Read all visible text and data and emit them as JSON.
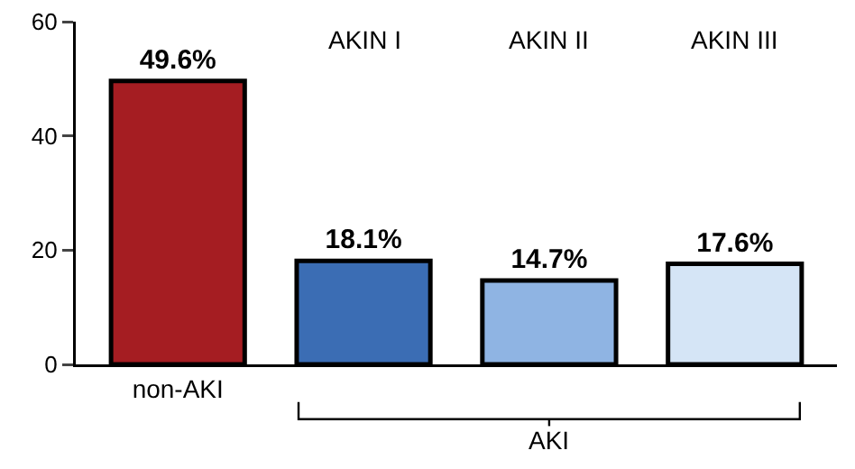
{
  "chart_data": {
    "type": "bar",
    "categories": [
      "non-AKI",
      "AKIN I",
      "AKIN II",
      "AKIN III"
    ],
    "values": [
      49.6,
      18.1,
      14.7,
      17.6
    ],
    "colors": [
      "#a51d22",
      "#3b6db4",
      "#8fb4e3",
      "#d5e5f6"
    ],
    "value_labels": [
      "49.6%",
      "18.1%",
      "14.7%",
      "17.6%"
    ],
    "ylim": [
      0,
      60
    ],
    "yticks": [
      0,
      20,
      40,
      60
    ],
    "grid": false,
    "annotations": [
      "AKI"
    ]
  }
}
